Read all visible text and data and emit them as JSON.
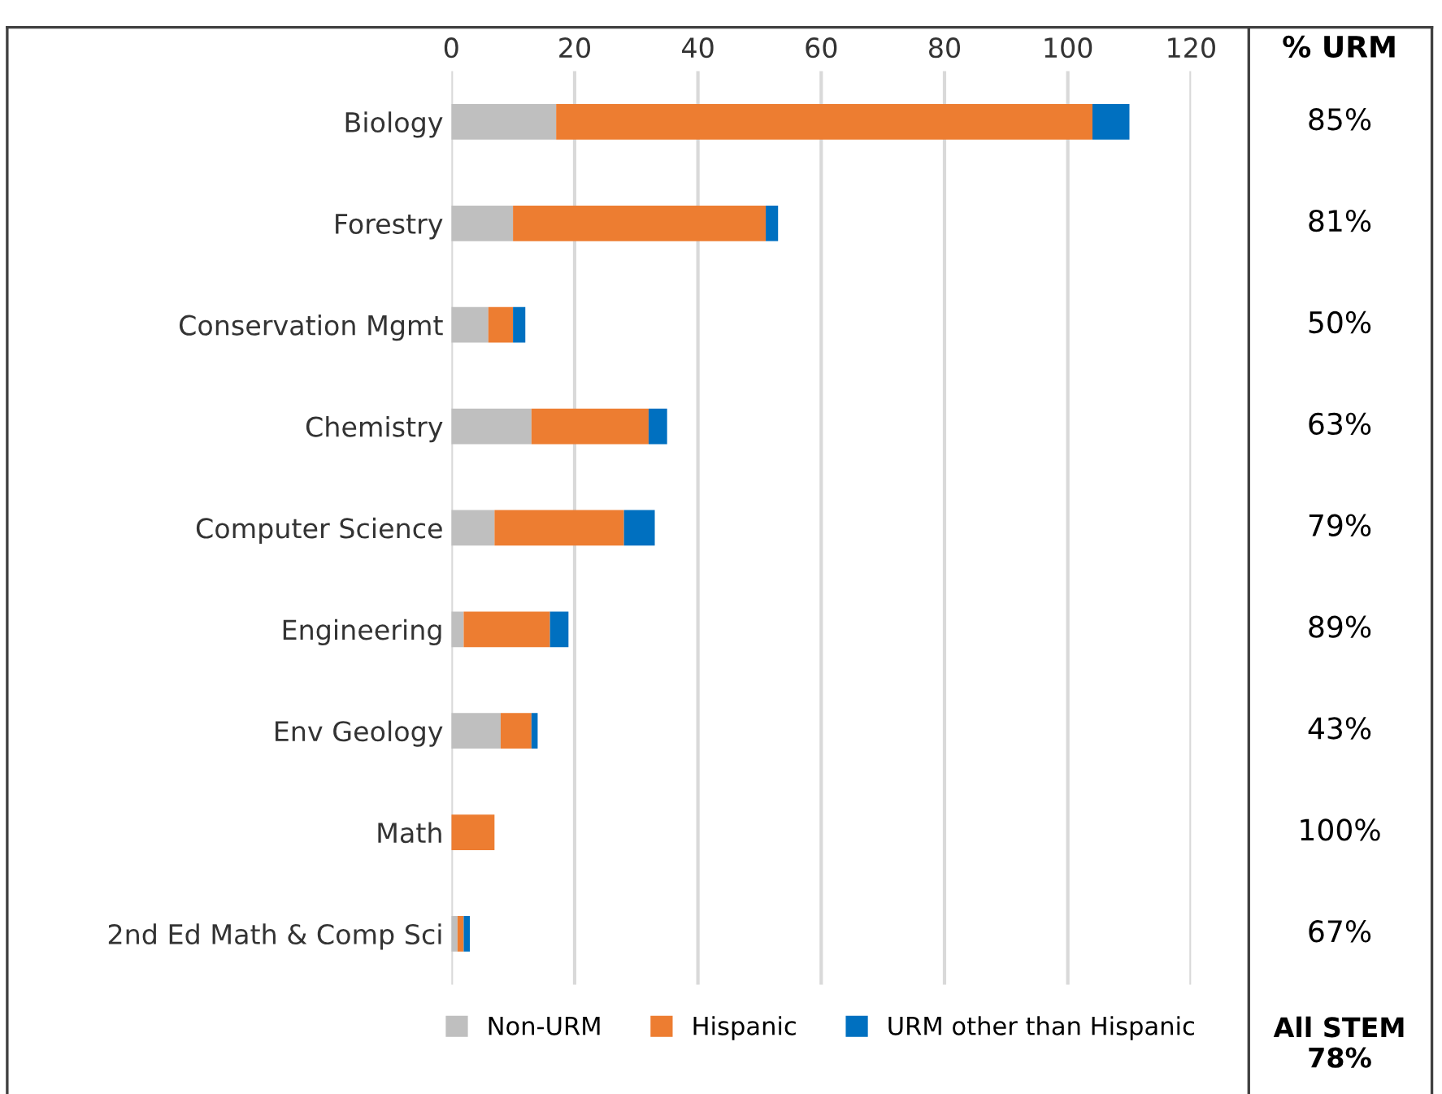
{
  "chart_data": {
    "type": "bar",
    "orientation": "horizontal",
    "stacked": true,
    "categories": [
      "Biology",
      "Forestry",
      "Conservation Mgmt",
      "Chemistry",
      "Computer Science",
      "Engineering",
      "Env Geology",
      "Math",
      "2nd Ed Math & Comp Sci"
    ],
    "series": [
      {
        "name": "Non-URM",
        "color": "#bfbfbf",
        "values": [
          17,
          10,
          6,
          13,
          7,
          2,
          8,
          0,
          1
        ]
      },
      {
        "name": "Hispanic",
        "color": "#ed7d31",
        "values": [
          87,
          41,
          4,
          19,
          21,
          14,
          5,
          7,
          1
        ]
      },
      {
        "name": "URM other than Hispanic",
        "color": "#0070c0",
        "values": [
          6,
          2,
          2,
          3,
          5,
          3,
          1,
          0,
          1
        ]
      }
    ],
    "xlim": [
      0,
      120
    ],
    "xticks": [
      0,
      20,
      40,
      60,
      80,
      100,
      120
    ],
    "grid": "x",
    "legend": "bottom",
    "annotations": [
      "% URM",
      "85%",
      "81%",
      "50%",
      "63%",
      "79%",
      "89%",
      "43%",
      "100%",
      "67%",
      "All STEM\n78%"
    ]
  }
}
